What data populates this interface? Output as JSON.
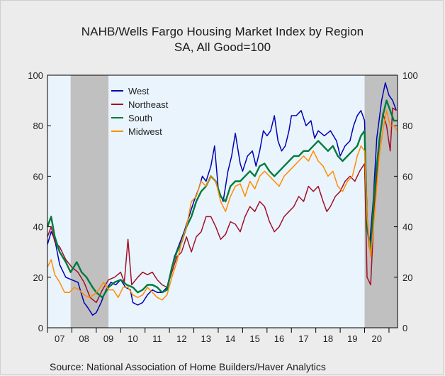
{
  "chart_data": {
    "type": "line",
    "title": "NAHB/Wells Fargo Housing Market Index by Region",
    "subtitle": "SA, All Good=100",
    "source": "Source:  National Association of Home Builders/Haver Analytics",
    "ylim": [
      0,
      100
    ],
    "xlim": [
      2007.0,
      2021.35
    ],
    "y_ticks": [
      0,
      20,
      40,
      60,
      80,
      100
    ],
    "x_tick_labels": [
      "07",
      "08",
      "09",
      "10",
      "11",
      "12",
      "13",
      "14",
      "15",
      "16",
      "17",
      "18",
      "19",
      "20"
    ],
    "recessions": [
      [
        2007.95,
        2009.5
      ],
      [
        2020.0,
        2021.35
      ]
    ],
    "legend_position": "top-left",
    "grid": false,
    "colors": {
      "plot_bg": "#eaf4fc",
      "recession": "#c0c0c0"
    },
    "series": [
      {
        "name": "West",
        "color": "#0000b4",
        "points": [
          [
            2007.0,
            33
          ],
          [
            2007.15,
            38
          ],
          [
            2007.3,
            35
          ],
          [
            2007.5,
            25
          ],
          [
            2007.75,
            20
          ],
          [
            2008.0,
            19
          ],
          [
            2008.25,
            18
          ],
          [
            2008.5,
            10
          ],
          [
            2008.65,
            8
          ],
          [
            2008.85,
            5
          ],
          [
            2009.0,
            6
          ],
          [
            2009.2,
            10
          ],
          [
            2009.4,
            15
          ],
          [
            2009.6,
            18
          ],
          [
            2009.8,
            17
          ],
          [
            2010.0,
            19
          ],
          [
            2010.2,
            16
          ],
          [
            2010.4,
            15
          ],
          [
            2010.5,
            10
          ],
          [
            2010.7,
            9
          ],
          [
            2010.9,
            10
          ],
          [
            2011.1,
            13
          ],
          [
            2011.3,
            15
          ],
          [
            2011.5,
            14
          ],
          [
            2011.7,
            14
          ],
          [
            2011.9,
            16
          ],
          [
            2012.0,
            20
          ],
          [
            2012.2,
            28
          ],
          [
            2012.4,
            33
          ],
          [
            2012.6,
            38
          ],
          [
            2012.8,
            44
          ],
          [
            2013.0,
            50
          ],
          [
            2013.2,
            55
          ],
          [
            2013.35,
            60
          ],
          [
            2013.5,
            58
          ],
          [
            2013.7,
            64
          ],
          [
            2013.85,
            72
          ],
          [
            2014.0,
            55
          ],
          [
            2014.2,
            50
          ],
          [
            2014.4,
            62
          ],
          [
            2014.55,
            68
          ],
          [
            2014.7,
            77
          ],
          [
            2014.9,
            65
          ],
          [
            2015.0,
            62
          ],
          [
            2015.2,
            68
          ],
          [
            2015.4,
            70
          ],
          [
            2015.55,
            64
          ],
          [
            2015.7,
            70
          ],
          [
            2015.85,
            78
          ],
          [
            2016.0,
            76
          ],
          [
            2016.15,
            78
          ],
          [
            2016.3,
            84
          ],
          [
            2016.45,
            74
          ],
          [
            2016.6,
            70
          ],
          [
            2016.75,
            72
          ],
          [
            2016.9,
            78
          ],
          [
            2017.0,
            84
          ],
          [
            2017.2,
            84
          ],
          [
            2017.4,
            86
          ],
          [
            2017.6,
            80
          ],
          [
            2017.8,
            82
          ],
          [
            2017.95,
            75
          ],
          [
            2018.1,
            78
          ],
          [
            2018.35,
            76
          ],
          [
            2018.6,
            78
          ],
          [
            2018.85,
            74
          ],
          [
            2019.0,
            68
          ],
          [
            2019.2,
            72
          ],
          [
            2019.4,
            74
          ],
          [
            2019.55,
            80
          ],
          [
            2019.7,
            84
          ],
          [
            2019.85,
            86
          ],
          [
            2020.0,
            82
          ],
          [
            2020.1,
            44
          ],
          [
            2020.2,
            32
          ],
          [
            2020.35,
            50
          ],
          [
            2020.5,
            75
          ],
          [
            2020.7,
            90
          ],
          [
            2020.85,
            97
          ],
          [
            2021.0,
            92
          ],
          [
            2021.15,
            90
          ],
          [
            2021.3,
            86
          ]
        ]
      },
      {
        "name": "Northeast",
        "color": "#a0102a",
        "points": [
          [
            2007.0,
            36
          ],
          [
            2007.15,
            40
          ],
          [
            2007.3,
            34
          ],
          [
            2007.5,
            32
          ],
          [
            2007.75,
            27
          ],
          [
            2008.0,
            24
          ],
          [
            2008.25,
            22
          ],
          [
            2008.5,
            18
          ],
          [
            2008.75,
            12
          ],
          [
            2009.0,
            10
          ],
          [
            2009.25,
            15
          ],
          [
            2009.5,
            19
          ],
          [
            2009.75,
            20
          ],
          [
            2010.0,
            22
          ],
          [
            2010.15,
            18
          ],
          [
            2010.3,
            35
          ],
          [
            2010.45,
            17
          ],
          [
            2010.7,
            20
          ],
          [
            2010.9,
            22
          ],
          [
            2011.1,
            21
          ],
          [
            2011.3,
            22
          ],
          [
            2011.5,
            19
          ],
          [
            2011.7,
            17
          ],
          [
            2011.9,
            16
          ],
          [
            2012.1,
            22
          ],
          [
            2012.3,
            28
          ],
          [
            2012.5,
            30
          ],
          [
            2012.7,
            36
          ],
          [
            2012.9,
            30
          ],
          [
            2013.1,
            36
          ],
          [
            2013.3,
            38
          ],
          [
            2013.5,
            44
          ],
          [
            2013.7,
            44
          ],
          [
            2013.9,
            40
          ],
          [
            2014.1,
            35
          ],
          [
            2014.3,
            37
          ],
          [
            2014.5,
            42
          ],
          [
            2014.7,
            41
          ],
          [
            2014.9,
            38
          ],
          [
            2015.1,
            44
          ],
          [
            2015.3,
            48
          ],
          [
            2015.5,
            46
          ],
          [
            2015.7,
            50
          ],
          [
            2015.9,
            48
          ],
          [
            2016.1,
            42
          ],
          [
            2016.3,
            38
          ],
          [
            2016.5,
            40
          ],
          [
            2016.7,
            44
          ],
          [
            2016.9,
            46
          ],
          [
            2017.1,
            48
          ],
          [
            2017.3,
            52
          ],
          [
            2017.5,
            50
          ],
          [
            2017.7,
            56
          ],
          [
            2017.9,
            54
          ],
          [
            2018.1,
            56
          ],
          [
            2018.3,
            50
          ],
          [
            2018.45,
            46
          ],
          [
            2018.6,
            48
          ],
          [
            2018.8,
            52
          ],
          [
            2019.0,
            54
          ],
          [
            2019.2,
            58
          ],
          [
            2019.4,
            60
          ],
          [
            2019.6,
            58
          ],
          [
            2019.8,
            62
          ],
          [
            2020.0,
            65
          ],
          [
            2020.1,
            20
          ],
          [
            2020.25,
            17
          ],
          [
            2020.4,
            48
          ],
          [
            2020.6,
            72
          ],
          [
            2020.75,
            85
          ],
          [
            2020.9,
            80
          ],
          [
            2021.05,
            70
          ],
          [
            2021.15,
            87
          ],
          [
            2021.3,
            86
          ]
        ]
      },
      {
        "name": "South",
        "color": "#007a3c",
        "points": [
          [
            2007.0,
            40
          ],
          [
            2007.15,
            44
          ],
          [
            2007.3,
            36
          ],
          [
            2007.5,
            30
          ],
          [
            2007.75,
            26
          ],
          [
            2007.95,
            22
          ],
          [
            2008.2,
            26
          ],
          [
            2008.4,
            22
          ],
          [
            2008.6,
            20
          ],
          [
            2008.85,
            16
          ],
          [
            2009.0,
            14
          ],
          [
            2009.25,
            12
          ],
          [
            2009.5,
            16
          ],
          [
            2009.75,
            18
          ],
          [
            2010.0,
            19
          ],
          [
            2010.25,
            17
          ],
          [
            2010.5,
            16
          ],
          [
            2010.7,
            14
          ],
          [
            2010.9,
            15
          ],
          [
            2011.1,
            17
          ],
          [
            2011.3,
            17
          ],
          [
            2011.5,
            16
          ],
          [
            2011.7,
            14
          ],
          [
            2011.9,
            15
          ],
          [
            2012.1,
            24
          ],
          [
            2012.3,
            30
          ],
          [
            2012.5,
            34
          ],
          [
            2012.7,
            40
          ],
          [
            2012.9,
            44
          ],
          [
            2013.1,
            50
          ],
          [
            2013.3,
            54
          ],
          [
            2013.5,
            56
          ],
          [
            2013.7,
            60
          ],
          [
            2013.9,
            58
          ],
          [
            2014.1,
            52
          ],
          [
            2014.3,
            50
          ],
          [
            2014.5,
            56
          ],
          [
            2014.7,
            58
          ],
          [
            2014.9,
            58
          ],
          [
            2015.1,
            60
          ],
          [
            2015.3,
            62
          ],
          [
            2015.5,
            60
          ],
          [
            2015.7,
            64
          ],
          [
            2015.9,
            65
          ],
          [
            2016.1,
            62
          ],
          [
            2016.3,
            60
          ],
          [
            2016.5,
            62
          ],
          [
            2016.7,
            64
          ],
          [
            2016.9,
            66
          ],
          [
            2017.1,
            68
          ],
          [
            2017.3,
            68
          ],
          [
            2017.5,
            70
          ],
          [
            2017.7,
            70
          ],
          [
            2017.9,
            72
          ],
          [
            2018.1,
            74
          ],
          [
            2018.3,
            72
          ],
          [
            2018.5,
            70
          ],
          [
            2018.7,
            72
          ],
          [
            2018.9,
            68
          ],
          [
            2019.1,
            66
          ],
          [
            2019.3,
            68
          ],
          [
            2019.5,
            70
          ],
          [
            2019.7,
            72
          ],
          [
            2019.85,
            76
          ],
          [
            2020.0,
            78
          ],
          [
            2020.1,
            40
          ],
          [
            2020.25,
            30
          ],
          [
            2020.4,
            54
          ],
          [
            2020.6,
            74
          ],
          [
            2020.75,
            84
          ],
          [
            2020.9,
            90
          ],
          [
            2021.05,
            86
          ],
          [
            2021.2,
            82
          ],
          [
            2021.35,
            82
          ]
        ]
      },
      {
        "name": "Midwest",
        "color": "#ff8c00",
        "points": [
          [
            2007.0,
            24
          ],
          [
            2007.15,
            27
          ],
          [
            2007.3,
            21
          ],
          [
            2007.5,
            18
          ],
          [
            2007.7,
            14
          ],
          [
            2007.9,
            14
          ],
          [
            2008.1,
            16
          ],
          [
            2008.3,
            15
          ],
          [
            2008.5,
            13
          ],
          [
            2008.7,
            12
          ],
          [
            2008.9,
            13
          ],
          [
            2009.1,
            15
          ],
          [
            2009.3,
            18
          ],
          [
            2009.5,
            15
          ],
          [
            2009.7,
            15
          ],
          [
            2009.9,
            12
          ],
          [
            2010.1,
            16
          ],
          [
            2010.3,
            16
          ],
          [
            2010.5,
            13
          ],
          [
            2010.7,
            12
          ],
          [
            2010.9,
            13
          ],
          [
            2011.1,
            16
          ],
          [
            2011.3,
            14
          ],
          [
            2011.5,
            12
          ],
          [
            2011.7,
            11
          ],
          [
            2011.9,
            13
          ],
          [
            2012.1,
            20
          ],
          [
            2012.3,
            26
          ],
          [
            2012.5,
            34
          ],
          [
            2012.7,
            40
          ],
          [
            2012.9,
            50
          ],
          [
            2013.1,
            52
          ],
          [
            2013.3,
            58
          ],
          [
            2013.5,
            56
          ],
          [
            2013.7,
            60
          ],
          [
            2013.9,
            58
          ],
          [
            2014.1,
            50
          ],
          [
            2014.3,
            46
          ],
          [
            2014.5,
            52
          ],
          [
            2014.7,
            56
          ],
          [
            2014.9,
            57
          ],
          [
            2015.1,
            52
          ],
          [
            2015.3,
            58
          ],
          [
            2015.5,
            55
          ],
          [
            2015.7,
            60
          ],
          [
            2015.9,
            62
          ],
          [
            2016.1,
            60
          ],
          [
            2016.3,
            58
          ],
          [
            2016.5,
            56
          ],
          [
            2016.7,
            60
          ],
          [
            2016.9,
            62
          ],
          [
            2017.1,
            64
          ],
          [
            2017.3,
            66
          ],
          [
            2017.5,
            68
          ],
          [
            2017.7,
            66
          ],
          [
            2017.9,
            70
          ],
          [
            2018.1,
            66
          ],
          [
            2018.3,
            64
          ],
          [
            2018.5,
            60
          ],
          [
            2018.7,
            62
          ],
          [
            2018.9,
            56
          ],
          [
            2019.1,
            54
          ],
          [
            2019.3,
            58
          ],
          [
            2019.5,
            60
          ],
          [
            2019.7,
            68
          ],
          [
            2019.85,
            72
          ],
          [
            2020.0,
            70
          ],
          [
            2020.1,
            44
          ],
          [
            2020.25,
            28
          ],
          [
            2020.4,
            44
          ],
          [
            2020.6,
            68
          ],
          [
            2020.75,
            78
          ],
          [
            2020.9,
            86
          ],
          [
            2021.05,
            80
          ],
          [
            2021.2,
            80
          ],
          [
            2021.35,
            78
          ]
        ]
      }
    ]
  }
}
